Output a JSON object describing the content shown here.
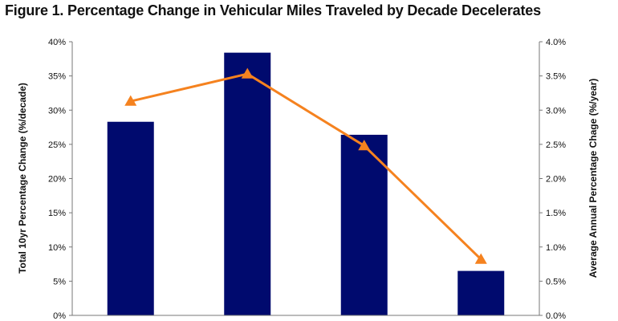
{
  "chart_data": {
    "title": "Figure 1. Percentage Change in Vehicular Miles Traveled by Decade Decelerates",
    "type": "bar",
    "categories": [
      "",
      "",
      "",
      ""
    ],
    "ylabel_left": "Total 10yr Percentage Change (%/decade)",
    "ylabel_right": "Average Annual Percentage Chage (%/year)",
    "y_left": {
      "min": 0,
      "max": 40,
      "ticks": [
        "0%",
        "5%",
        "10%",
        "15%",
        "20%",
        "25%",
        "30%",
        "35%",
        "40%"
      ]
    },
    "y_right": {
      "min": 0,
      "max": 4.0,
      "ticks": [
        "0.0%",
        "0.5%",
        "1.0%",
        "1.5%",
        "2.0%",
        "2.5%",
        "3.0%",
        "3.5%",
        "4.0%"
      ]
    },
    "series": [
      {
        "type": "bar",
        "axis": "left",
        "values": [
          28.3,
          38.4,
          26.4,
          6.5
        ],
        "color": "#000a6e"
      },
      {
        "type": "line",
        "axis": "right",
        "values": [
          3.13,
          3.53,
          2.48,
          0.82
        ],
        "color": "#f5821f",
        "marker": "triangle"
      }
    ],
    "grid": false,
    "legend": "none"
  }
}
